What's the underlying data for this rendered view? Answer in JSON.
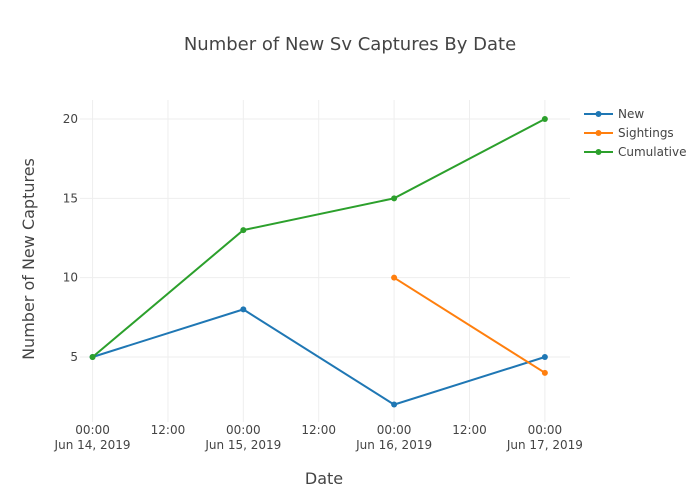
{
  "chart_data": {
    "type": "line",
    "title": "Number of New Sv Captures By Date",
    "xlabel": "Date",
    "ylabel": "Number of New Captures",
    "x_ticks": [
      {
        "x": "2019-06-14T00:00",
        "line1": "00:00",
        "line2": "Jun 14, 2019"
      },
      {
        "x": "2019-06-14T12:00",
        "line1": "12:00",
        "line2": ""
      },
      {
        "x": "2019-06-15T00:00",
        "line1": "00:00",
        "line2": "Jun 15, 2019"
      },
      {
        "x": "2019-06-15T12:00",
        "line1": "12:00",
        "line2": ""
      },
      {
        "x": "2019-06-16T00:00",
        "line1": "00:00",
        "line2": "Jun 16, 2019"
      },
      {
        "x": "2019-06-16T12:00",
        "line1": "12:00",
        "line2": ""
      },
      {
        "x": "2019-06-17T00:00",
        "line1": "00:00",
        "line2": "Jun 17, 2019"
      }
    ],
    "y_ticks": [
      5,
      10,
      15,
      20
    ],
    "xlim": [
      "2019-06-13T22:00",
      "2019-06-17T04:00"
    ],
    "ylim": [
      0.9,
      21.2
    ],
    "grid": true,
    "legend_position": "top-right",
    "series": [
      {
        "name": "New",
        "color": "#1f77b4",
        "points": [
          {
            "x": "2019-06-14T00:00",
            "y": 5
          },
          {
            "x": "2019-06-15T00:00",
            "y": 8
          },
          {
            "x": "2019-06-16T00:00",
            "y": 2
          },
          {
            "x": "2019-06-17T00:00",
            "y": 5
          }
        ]
      },
      {
        "name": "Sightings",
        "color": "#ff7f0e",
        "points": [
          {
            "x": "2019-06-16T00:00",
            "y": 10
          },
          {
            "x": "2019-06-17T00:00",
            "y": 4
          }
        ]
      },
      {
        "name": "Cumulative",
        "color": "#2ca02c",
        "points": [
          {
            "x": "2019-06-14T00:00",
            "y": 5
          },
          {
            "x": "2019-06-15T00:00",
            "y": 13
          },
          {
            "x": "2019-06-16T00:00",
            "y": 15
          },
          {
            "x": "2019-06-17T00:00",
            "y": 20
          }
        ]
      }
    ]
  }
}
